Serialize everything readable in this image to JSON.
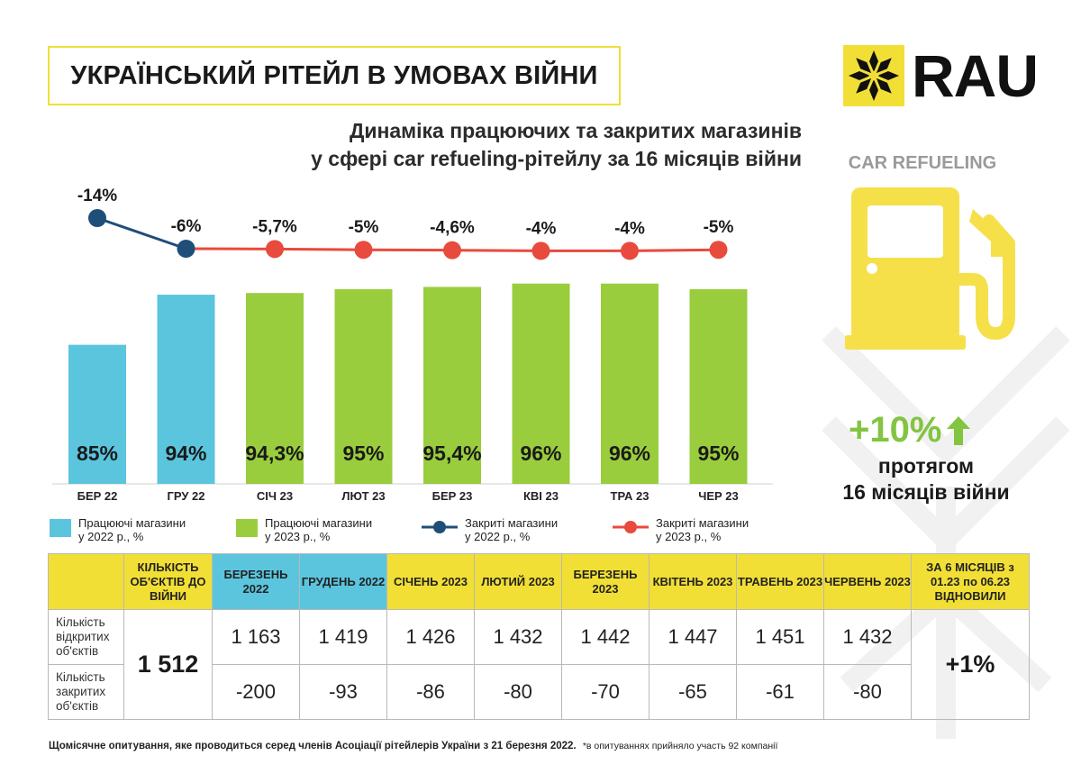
{
  "header": {
    "title": "УКРАЇНСЬКИЙ РІТЕЙЛ В УМОВАХ ВІЙНИ",
    "logo_text": "RAU"
  },
  "subtitle": {
    "line1": "Динаміка працюючих та закритих магазинів",
    "line2": "у сфері car refueling-рітейлу за 16 місяців війни"
  },
  "side": {
    "sector": "CAR REFUELING",
    "growth": "+10%",
    "growth_sub1": "протягом",
    "growth_sub2": "16 місяців війни",
    "colors": {
      "pump": "#f6e04a",
      "growth": "#83c441",
      "decor": "#f2f2f2"
    }
  },
  "chart_data": {
    "type": "bar",
    "title": "Динаміка працюючих та закритих магазинів у сфері car refueling-рітейлу за 16 місяців війни",
    "categories": [
      "БЕР 22",
      "ГРУ 22",
      "СІЧ 23",
      "ЛЮТ 23",
      "БЕР 23",
      "КВІ 23",
      "ТРА 23",
      "ЧЕР 23"
    ],
    "bars": {
      "values": [
        85,
        94,
        94.3,
        95,
        95.4,
        96,
        96,
        95
      ],
      "labels": [
        "85%",
        "94%",
        "94,3%",
        "95%",
        "95,4%",
        "96%",
        "96%",
        "95%"
      ],
      "colors": [
        "#5bc5de",
        "#5bc5de",
        "#9acd3e",
        "#9acd3e",
        "#9acd3e",
        "#9acd3e",
        "#9acd3e",
        "#9acd3e"
      ]
    },
    "line": {
      "values": [
        -14,
        -6,
        -5.7,
        -5,
        -4.6,
        -4,
        -4,
        -5
      ],
      "labels": [
        "-14%",
        "-6%",
        "-5,7%",
        "-5%",
        "-4,6%",
        "-4%",
        "-4%",
        "-5%"
      ],
      "colors_2022": "#1f4e79",
      "colors_2023": "#e84a3d"
    },
    "legend": [
      {
        "label": "Працюючі магазини\nу 2022 р., %",
        "kind": "bar",
        "color": "#5bc5de"
      },
      {
        "label": "Працюючі магазини\nу 2023 р., %",
        "kind": "bar",
        "color": "#9acd3e"
      },
      {
        "label": "Закриті магазини\nу 2022 р., %",
        "kind": "line",
        "color": "#1f4e79"
      },
      {
        "label": "Закриті магазини\nу 2023 р., %",
        "kind": "line",
        "color": "#e84a3d"
      }
    ]
  },
  "table": {
    "headers": [
      "КІЛЬКІСТЬ ОБ'ЄКТІВ ДО ВІЙНИ",
      "БЕРЕЗЕНЬ 2022",
      "ГРУДЕНЬ 2022",
      "СІЧЕНЬ 2023",
      "ЛЮТИЙ 2023",
      "БЕРЕЗЕНЬ 2023",
      "КВІТЕНЬ 2023",
      "ТРАВЕНЬ 2023",
      "ЧЕРВЕНЬ 2023",
      "ЗА 6 МІСЯЦІВ з 01.23 по 06.23 ВІДНОВИЛИ"
    ],
    "header_kinds": [
      "y",
      "b",
      "b",
      "y",
      "y",
      "y",
      "y",
      "y",
      "y",
      "y"
    ],
    "row_open_label": "Кількість відкритих об'єктів",
    "row_closed_label": "Кількість закритих об'єктів",
    "before_war": "1 512",
    "open": [
      "1 163",
      "1 419",
      "1 426",
      "1 432",
      "1 442",
      "1 447",
      "1 451",
      "1 432"
    ],
    "closed": [
      "-200",
      "-93",
      "-86",
      "-80",
      "-70",
      "-65",
      "-61",
      "-80"
    ],
    "recovered": "+1%"
  },
  "footer": {
    "main": "Щомісячне опитування, яке проводиться серед членів Асоціації рітейлерів України з 21 березня 2022.",
    "note": "*в опитуваннях прийняло участь 92 компанії"
  }
}
